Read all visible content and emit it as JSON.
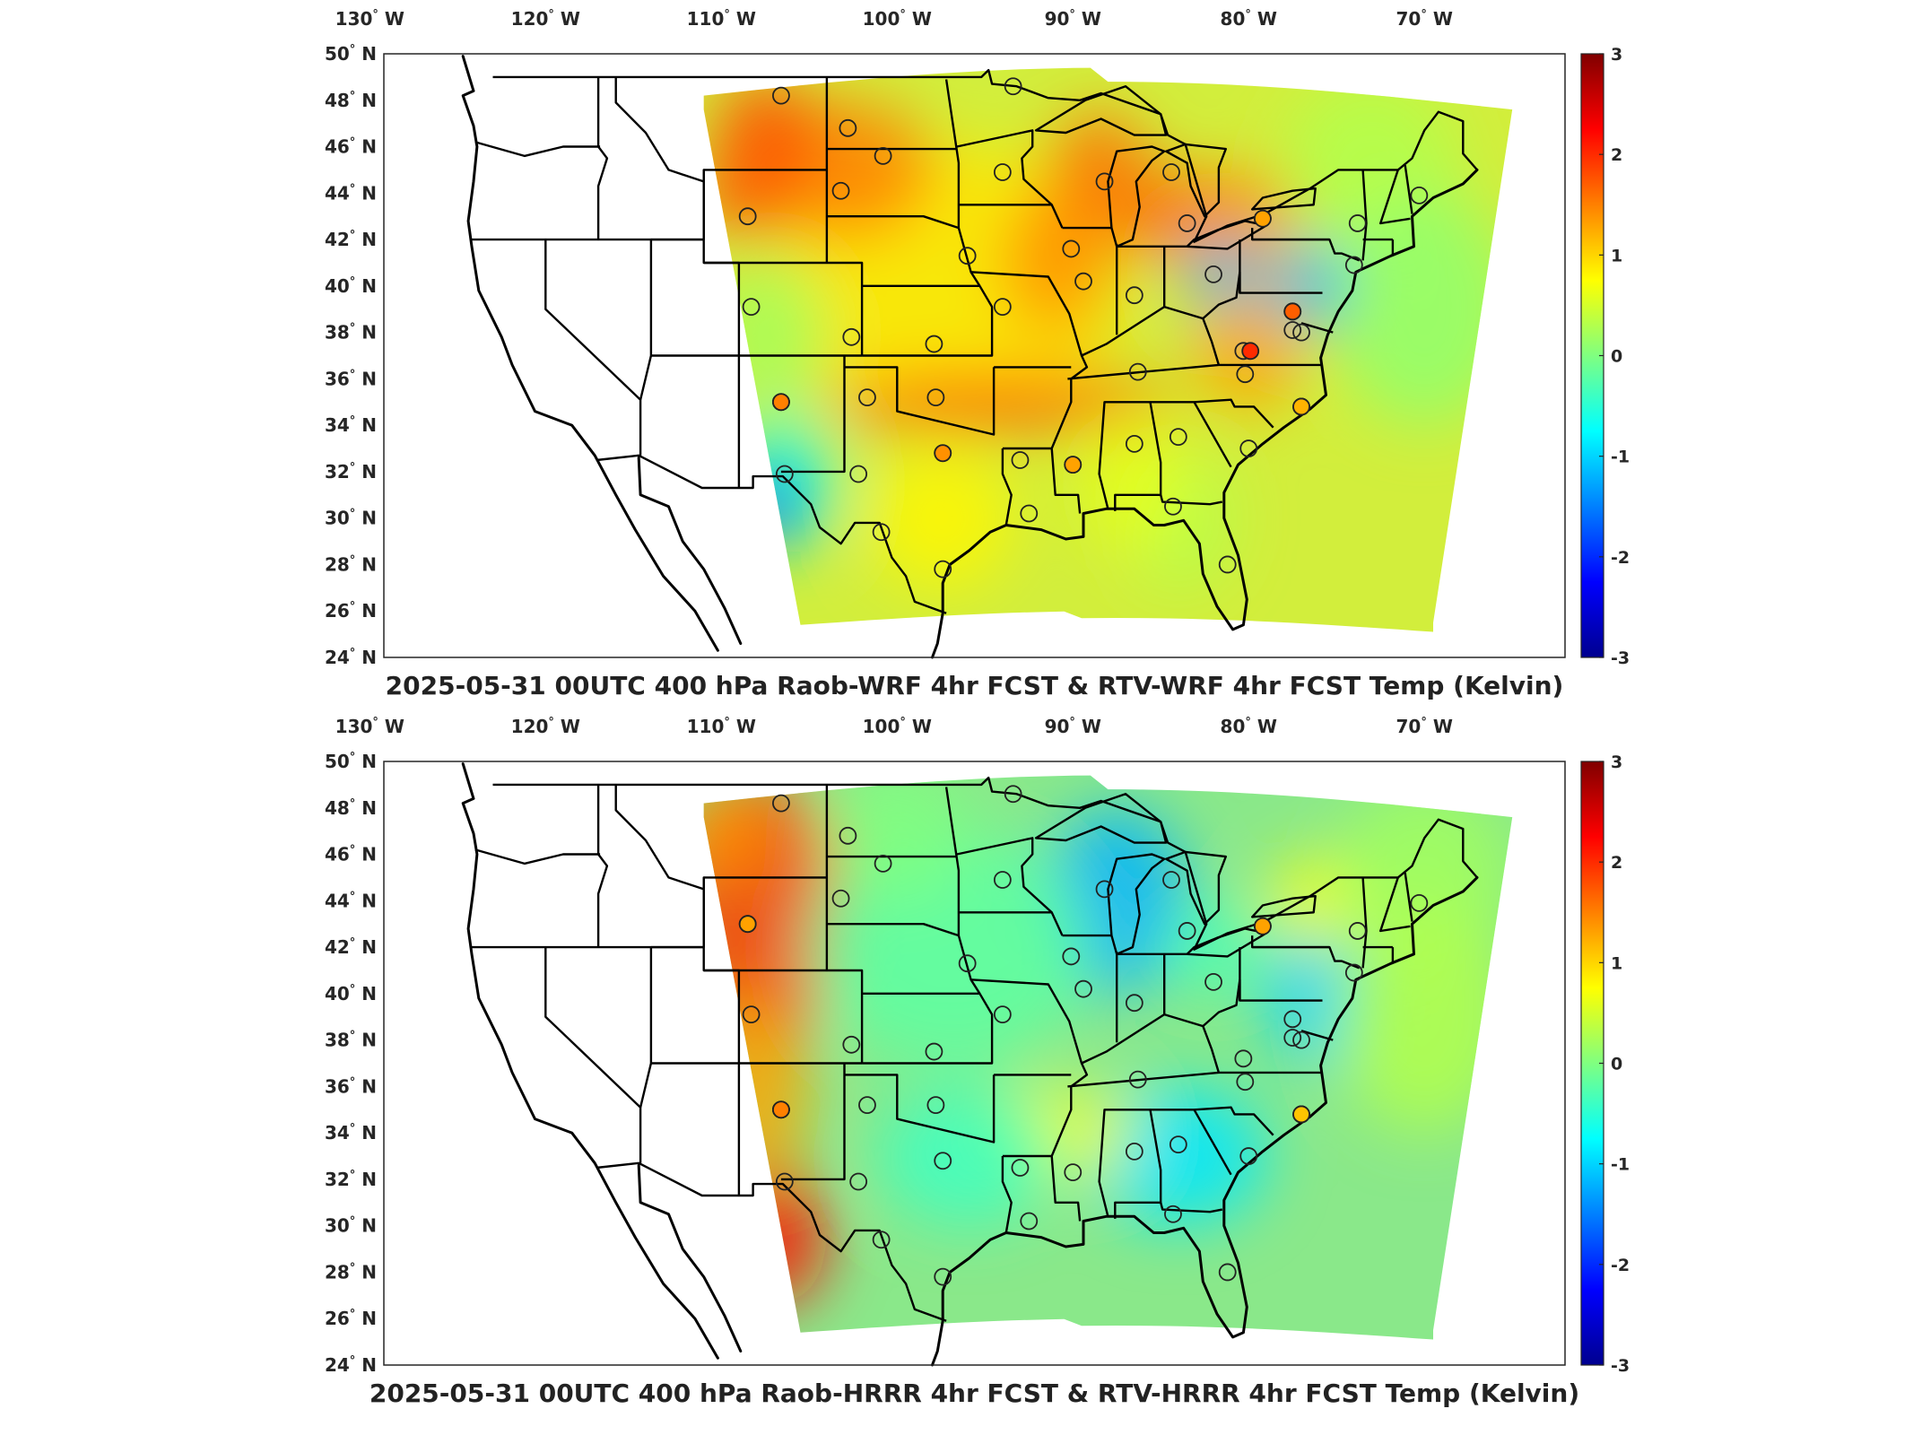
{
  "map": {
    "lon_labels": [
      "130",
      "120",
      "110",
      "100",
      "90",
      "80",
      "70"
    ],
    "lon_hemisphere": "W",
    "lat_labels": [
      "50",
      "48",
      "46",
      "44",
      "42",
      "40",
      "38",
      "36",
      "34",
      "32",
      "30",
      "28",
      "26",
      "24"
    ],
    "lat_hemisphere": "N",
    "degree_symbol": "°",
    "colorbar_ticks": [
      "3",
      "2",
      "1",
      "0",
      "-1",
      "-2",
      "-3"
    ],
    "colormap": [
      "#00008f",
      "#0000ff",
      "#0080ff",
      "#00ffff",
      "#80ff80",
      "#ffff00",
      "#ff8000",
      "#ff0000",
      "#800000"
    ]
  },
  "panels": [
    {
      "title": "2025-05-31 00UTC 400 hPa Raob-WRF 4hr FCST & RTV-WRF 4hr FCST Temp (Kelvin)",
      "field_base": "#d2ee3c",
      "highlight_stations": [
        {
          "lon": -106.6,
          "lat": 35.0,
          "value": 1.5
        },
        {
          "lon": -97.4,
          "lat": 32.8,
          "value": 1.4
        },
        {
          "lon": -90.0,
          "lat": 32.3,
          "value": 1.3
        },
        {
          "lon": -79.9,
          "lat": 37.2,
          "value": 2.0
        },
        {
          "lon": -77.5,
          "lat": 38.9,
          "value": 1.7
        },
        {
          "lon": -79.2,
          "lat": 42.9,
          "value": 1.3
        },
        {
          "lon": -77.0,
          "lat": 34.8,
          "value": 1.2
        }
      ]
    },
    {
      "title": "2025-05-31 00UTC 400 hPa Raob-HRRR 4hr FCST & RTV-HRRR 4hr FCST Temp (Kelvin)",
      "field_base": "#8ae88a",
      "highlight_stations": [
        {
          "lon": -106.6,
          "lat": 35.0,
          "value": 1.5
        },
        {
          "lon": -108.5,
          "lat": 43.0,
          "value": 1.3
        },
        {
          "lon": -79.2,
          "lat": 42.9,
          "value": 1.3
        },
        {
          "lon": -77.0,
          "lat": 34.8,
          "value": 1.1
        }
      ]
    }
  ],
  "stations": [
    [
      -106.6,
      48.2
    ],
    [
      -102.8,
      46.8
    ],
    [
      -100.8,
      45.6
    ],
    [
      -93.4,
      48.6
    ],
    [
      -94.0,
      44.9
    ],
    [
      -88.2,
      44.5
    ],
    [
      -84.4,
      44.9
    ],
    [
      -83.5,
      42.7
    ],
    [
      -79.2,
      42.9
    ],
    [
      -73.8,
      42.7
    ],
    [
      -70.3,
      43.9
    ],
    [
      -108.5,
      43.0
    ],
    [
      -103.2,
      44.1
    ],
    [
      -108.3,
      39.1
    ],
    [
      -102.6,
      37.8
    ],
    [
      -97.9,
      37.5
    ],
    [
      -96.0,
      41.3
    ],
    [
      -94.0,
      39.1
    ],
    [
      -90.1,
      41.6
    ],
    [
      -89.4,
      40.2
    ],
    [
      -86.5,
      39.6
    ],
    [
      -82.0,
      40.5
    ],
    [
      -80.3,
      37.2
    ],
    [
      -77.5,
      38.9
    ],
    [
      -74.0,
      40.9
    ],
    [
      -86.3,
      36.3
    ],
    [
      -80.2,
      36.2
    ],
    [
      -77.0,
      34.8
    ],
    [
      -80.0,
      33.0
    ],
    [
      -84.0,
      33.5
    ],
    [
      -86.5,
      33.2
    ],
    [
      -90.0,
      32.3
    ],
    [
      -93.0,
      32.5
    ],
    [
      -92.5,
      30.2
    ],
    [
      -84.3,
      30.5
    ],
    [
      -81.2,
      28.0
    ],
    [
      -97.4,
      27.8
    ],
    [
      -97.4,
      32.8
    ],
    [
      -97.8,
      35.2
    ],
    [
      -101.7,
      35.2
    ],
    [
      -106.6,
      35.0
    ],
    [
      -106.4,
      31.9
    ],
    [
      -102.2,
      31.9
    ],
    [
      -100.9,
      29.4
    ],
    [
      -106.6,
      35.0
    ],
    [
      -77.5,
      38.1
    ],
    [
      -77.0,
      38.0
    ]
  ]
}
